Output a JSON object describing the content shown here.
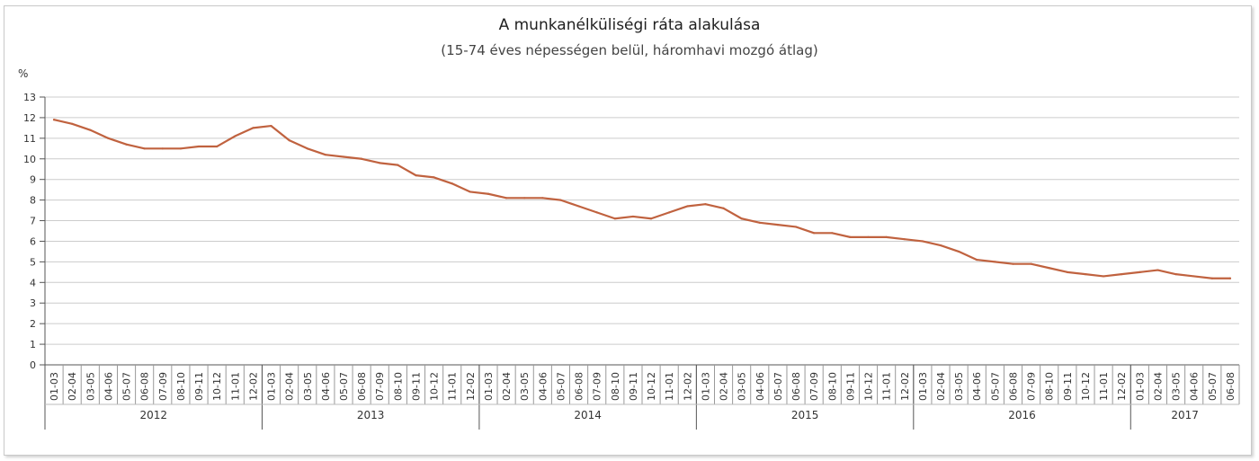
{
  "chart_data": {
    "type": "line",
    "title": "A munkanélküliségi ráta alakulása",
    "subtitle": "(15-74 éves népességen belül, háromhavi mozgó átlag)",
    "ylabel": "%",
    "xlabel": "",
    "ylim": [
      0,
      13
    ],
    "yticks": [
      0,
      1,
      2,
      3,
      4,
      5,
      6,
      7,
      8,
      9,
      10,
      11,
      12,
      13
    ],
    "grid": true,
    "colors": {
      "line": "#c0623f",
      "grid": "#cccccc",
      "axis": "#555555"
    },
    "periods": [
      "01-03",
      "02-04",
      "03-05",
      "04-06",
      "05-07",
      "06-08",
      "07-09",
      "08-10",
      "09-11",
      "10-12",
      "11-01",
      "12-02"
    ],
    "years": [
      {
        "label": "2012",
        "count": 12
      },
      {
        "label": "2013",
        "count": 12
      },
      {
        "label": "2014",
        "count": 12
      },
      {
        "label": "2015",
        "count": 12
      },
      {
        "label": "2016",
        "count": 12
      },
      {
        "label": "2017",
        "count": 6
      }
    ],
    "series": [
      {
        "values": [
          11.9,
          11.7,
          11.4,
          11.0,
          10.7,
          10.5,
          10.5,
          10.5,
          10.6,
          10.6,
          11.1,
          11.5,
          11.6,
          10.9,
          10.5,
          10.2,
          10.1,
          10.0,
          9.8,
          9.7,
          9.2,
          9.1,
          8.8,
          8.4,
          8.3,
          8.1,
          8.1,
          8.1,
          8.0,
          7.7,
          7.4,
          7.1,
          7.2,
          7.1,
          7.4,
          7.7,
          7.8,
          7.6,
          7.1,
          6.9,
          6.8,
          6.7,
          6.4,
          6.4,
          6.2,
          6.2,
          6.2,
          6.1,
          6.0,
          5.8,
          5.5,
          5.1,
          5.0,
          4.9,
          4.9,
          4.7,
          4.5,
          4.4,
          4.3,
          4.4,
          4.5,
          4.6,
          4.4,
          4.3,
          4.2,
          4.2
        ]
      }
    ]
  }
}
